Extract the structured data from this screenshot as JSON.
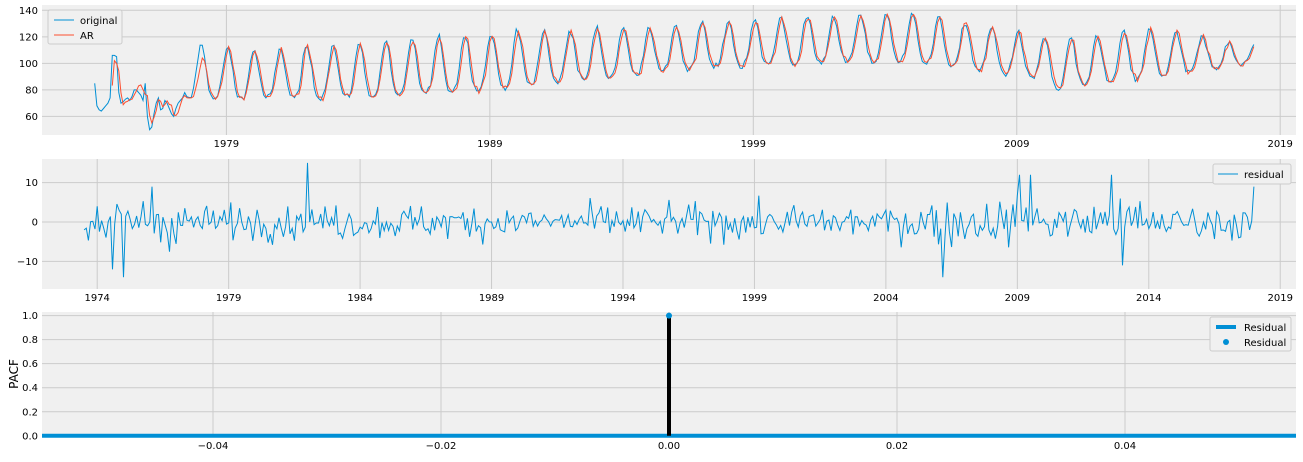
{
  "figure": {
    "background": "#ffffff",
    "axes_face": "#f0f0f0",
    "grid_color": "#cbcbcb"
  },
  "chart_data": [
    {
      "type": "line",
      "title": "",
      "xlabel": "",
      "ylabel": "",
      "x_ticks": [
        "1979",
        "1989",
        "1999",
        "2009",
        "2019"
      ],
      "x_tick_years": [
        1979,
        1989,
        1999,
        2009,
        2019
      ],
      "xlim": [
        1972.0,
        2019.6
      ],
      "ylim": [
        46,
        144
      ],
      "y_ticks": [
        60,
        80,
        100,
        120,
        140
      ],
      "grid": true,
      "legend_position": "upper-left",
      "data_range": [
        1974.0,
        2018.0
      ],
      "series": [
        {
          "name": "original",
          "color": "#008fd5",
          "segments": [
            {
              "start": 1974.0,
              "end": 1976.0,
              "values": [
                85,
                68,
                65,
                64,
                66,
                68,
                70,
                74,
                106,
                106,
                105,
                78,
                70,
                71,
                73,
                74,
                72,
                75,
                80,
                80,
                78,
                76,
                72,
                85
              ]
            },
            {
              "start": 1976.0,
              "end": 1977.5,
              "values": [
                60,
                50,
                52,
                62,
                70,
                74,
                65,
                66,
                72,
                70,
                66,
                62,
                60,
                66,
                70,
                72,
                74,
                78
              ]
            }
          ],
          "years_from": 1977.5,
          "seasonal": [
            [
              1977.5,
              73,
              115
            ],
            [
              1980,
              74,
              110
            ],
            [
              1985,
              75,
              116
            ],
            [
              1990,
              83,
              124
            ],
            [
              1995,
              93,
              128
            ],
            [
              2000,
              100,
              135
            ],
            [
              2005,
              102,
              138
            ],
            [
              2009.5,
              90,
              122
            ],
            [
              2010.5,
              80,
              118
            ],
            [
              2014,
              90,
              126
            ],
            [
              2018,
              100,
              114
            ]
          ]
        },
        {
          "name": "AR",
          "color": "#fc4f30"
        }
      ]
    },
    {
      "type": "line",
      "title": "",
      "xlabel": "",
      "ylabel": "",
      "x_ticks": [
        "1974",
        "1979",
        "1984",
        "1989",
        "1994",
        "1999",
        "2004",
        "2009",
        "2014",
        "2019"
      ],
      "x_tick_years": [
        1974,
        1979,
        1984,
        1989,
        1994,
        1999,
        2004,
        2009,
        2014,
        2019
      ],
      "xlim": [
        1971.9,
        2019.6
      ],
      "ylim": [
        -17,
        16
      ],
      "y_ticks": [
        -10,
        0,
        10
      ],
      "grid": true,
      "legend_position": "upper-right",
      "data_range": [
        1973.5,
        2018.0
      ],
      "series": [
        {
          "name": "residual",
          "color": "#008fd5",
          "marked_points": [
            [
              1973.5,
              -2
            ],
            [
              1974.0,
              4
            ],
            [
              1974.6,
              -12
            ],
            [
              1975.0,
              -14
            ],
            [
              1976.1,
              9
            ],
            [
              1982.0,
              15
            ],
            [
              2006.2,
              -14
            ],
            [
              2009.1,
              12
            ],
            [
              2009.5,
              12
            ],
            [
              2012.6,
              12
            ],
            [
              2013.0,
              -11
            ],
            [
              2017.8,
              -2
            ],
            [
              2018.0,
              9
            ]
          ]
        }
      ]
    },
    {
      "type": "stem",
      "title": "",
      "xlabel": "",
      "ylabel": "PACF",
      "x_ticks": [
        "−0.04",
        "−0.02",
        "0.00",
        "0.02",
        "0.04"
      ],
      "x_tick_values": [
        -0.04,
        -0.02,
        0.0,
        0.02,
        0.04
      ],
      "xlim": [
        -0.055,
        0.055
      ],
      "ylim": [
        -0.01,
        1.03
      ],
      "y_ticks": [
        "0.0",
        "0.2",
        "0.4",
        "0.6",
        "0.8",
        "1.0"
      ],
      "y_tick_values": [
        0.0,
        0.2,
        0.4,
        0.6,
        0.8,
        1.0
      ],
      "grid": true,
      "legend_position": "upper-right",
      "stems": [
        {
          "x": 0.0,
          "y": 1.0
        }
      ],
      "baseline": 0.0,
      "series": [
        {
          "name": "Residual",
          "kind": "line",
          "color": "#008fd5"
        },
        {
          "name": "Residual",
          "kind": "marker",
          "color": "#008fd5"
        }
      ],
      "stem_color": "#000000"
    }
  ]
}
